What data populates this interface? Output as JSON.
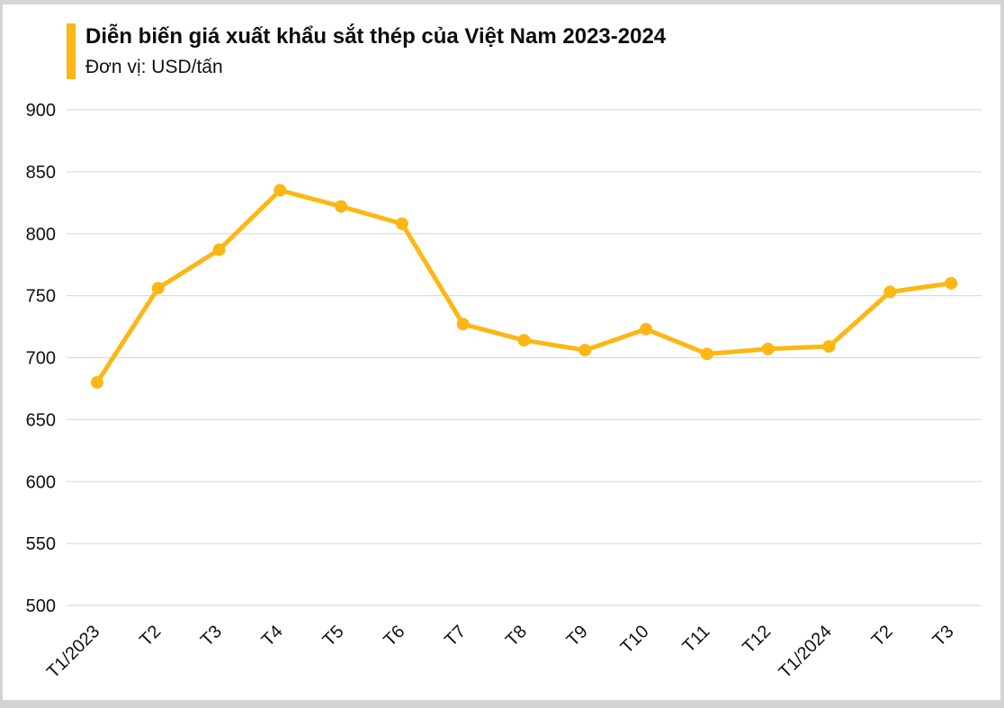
{
  "header": {
    "title": "Diễn biến giá xuất khẩu sắt thép của Việt Nam 2023-2024",
    "subtitle": "Đơn vị: USD/tấn"
  },
  "chart_data": {
    "type": "line",
    "title": "Diễn biến giá xuất khẩu sắt thép của Việt Nam 2023-2024",
    "unit_label": "Đơn vị: USD/tấn",
    "categories": [
      "T1/2023",
      "T2",
      "T3",
      "T4",
      "T5",
      "T6",
      "T7",
      "T8",
      "T9",
      "T10",
      "T11",
      "T12",
      "T1/2024",
      "T2",
      "T3"
    ],
    "values": [
      680,
      756,
      787,
      835,
      822,
      808,
      727,
      714,
      706,
      723,
      703,
      707,
      709,
      753,
      760
    ],
    "xlabel": "",
    "ylabel": "",
    "ylim": [
      500,
      900
    ],
    "yticks": [
      500,
      550,
      600,
      650,
      700,
      750,
      800,
      850,
      900
    ],
    "grid": "horizontal",
    "legend": "none",
    "colors": {
      "line": "#fcb714",
      "marker": "#fcb714",
      "accent_bar": "#fcb714",
      "gridline": "#dcdcdc",
      "tick_text": "#111111"
    }
  }
}
